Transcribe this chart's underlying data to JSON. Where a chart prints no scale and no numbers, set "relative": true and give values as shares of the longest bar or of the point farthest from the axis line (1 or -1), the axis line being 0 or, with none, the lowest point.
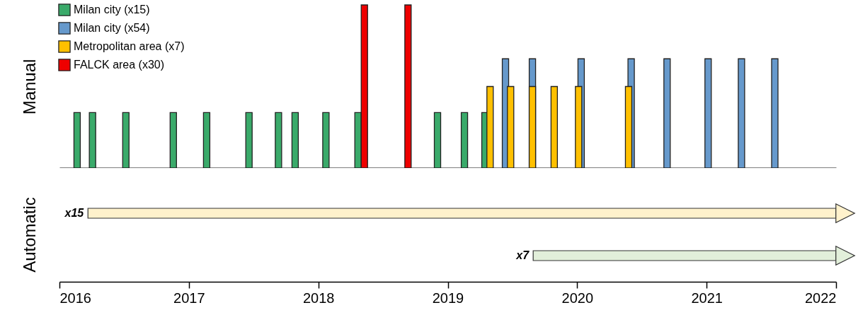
{
  "chart_data": [
    {
      "type": "bar",
      "relative": true,
      "ylabel": "Manual",
      "xlim": [
        2016,
        2022
      ],
      "xticks": [
        2016,
        2017,
        2018,
        2019,
        2020,
        2021,
        2022
      ],
      "legend": "top left",
      "tick_labels": false,
      "series": [
        {
          "name": "Milan city (x15)",
          "color": "#3aaa6a",
          "x": [
            2016.11,
            2016.23,
            2016.49,
            2016.86,
            2017.12,
            2017.45,
            2017.68,
            2017.81,
            2018.05,
            2018.3,
            2018.92,
            2019.13,
            2019.29
          ],
          "values": [
            0.34,
            0.34,
            0.34,
            0.34,
            0.34,
            0.34,
            0.34,
            0.34,
            0.34,
            0.34,
            0.34,
            0.34,
            0.34
          ]
        },
        {
          "name": "Milan city (x54)",
          "color": "#6699cc",
          "x": [
            2019.45,
            2019.66,
            2020.04,
            2020.43,
            2020.71,
            2021.03,
            2021.29,
            2021.55
          ],
          "values": [
            0.67,
            0.67,
            0.67,
            0.67,
            0.67,
            0.67,
            0.67,
            0.67
          ]
        },
        {
          "name": "Metropolitan area (x7)",
          "color": "#ffc000",
          "x": [
            2019.33,
            2019.49,
            2019.66,
            2019.83,
            2020.02,
            2020.41
          ],
          "values": [
            0.5,
            0.5,
            0.5,
            0.5,
            0.5,
            0.5
          ]
        },
        {
          "name": "FALCK area (x30)",
          "color": "#ee0000",
          "x": [
            2018.35,
            2018.69
          ],
          "values": [
            1,
            1
          ]
        }
      ]
    },
    {
      "type": "bar",
      "orientation": "horizontal",
      "ylabel": "Automatic",
      "categories": [
        "x15",
        "x7"
      ],
      "base": [
        2016.22,
        2019.66
      ],
      "values": [
        5.78,
        2.34
      ],
      "colors": [
        "#fff2cc",
        "#e2efda"
      ],
      "xlim": [
        2016,
        2022
      ],
      "xticks": [
        2016,
        2017,
        2018,
        2019,
        2020,
        2021,
        2022
      ]
    }
  ]
}
